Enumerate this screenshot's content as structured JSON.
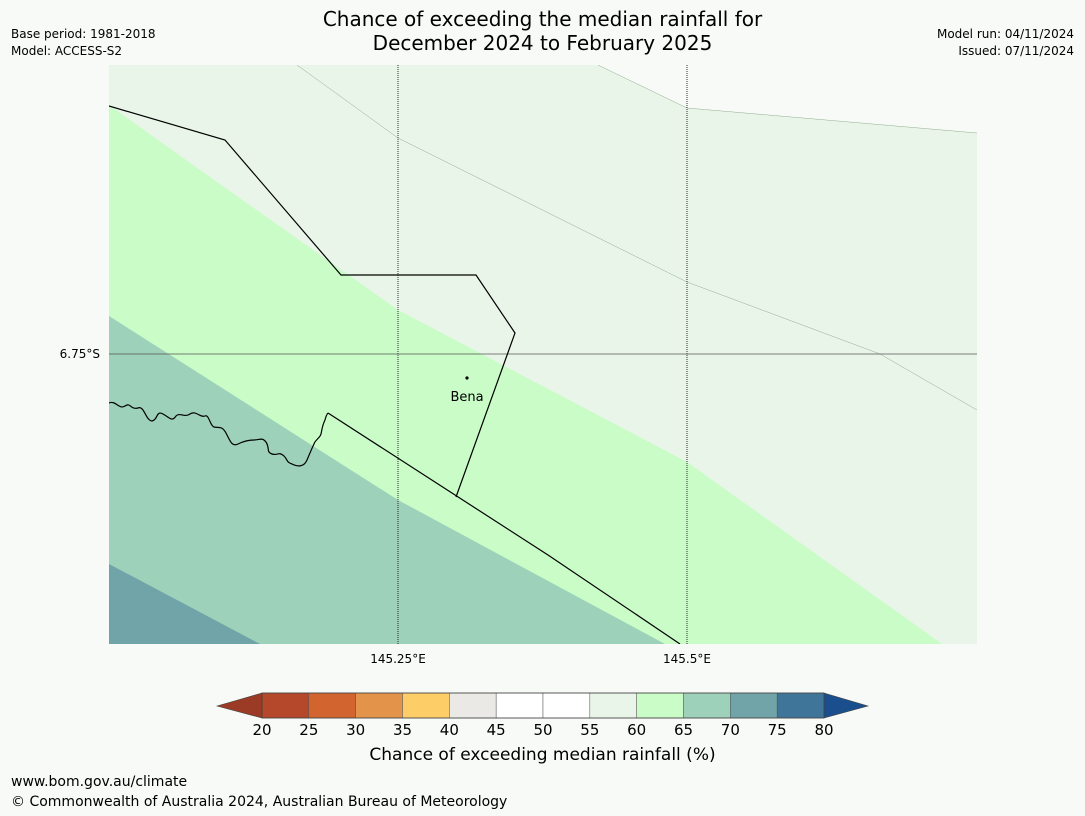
{
  "title_line1": "Chance of exceeding the median rainfall for",
  "title_line2": "December 2024 to February 2025",
  "base_period": "Base period: 1981-2018",
  "model": "Model: ACCESS-S2",
  "model_run": "Model run: 04/11/2024",
  "issued": "Issued: 07/11/2024",
  "map": {
    "lat_label": "6.75°S",
    "lon_labels": [
      "145.25°E",
      "145.5°E"
    ],
    "town": "Bena"
  },
  "colorbar": {
    "ticks": [
      "20",
      "25",
      "30",
      "35",
      "40",
      "45",
      "50",
      "55",
      "60",
      "65",
      "70",
      "75",
      "80"
    ],
    "colors": [
      "#9b3b26",
      "#b5482a",
      "#d2652f",
      "#e4944a",
      "#fdcd67",
      "#eae9e5",
      "#ffffff",
      "#ffffff",
      "#e9f5e8",
      "#c9fcc7",
      "#9dd1ba",
      "#70a4a8",
      "#3f7599",
      "#1a4e8c"
    ],
    "label": "Chance of exceeding median rainfall (%)"
  },
  "footer_url": "www.bom.gov.au/climate",
  "footer_copyright": "© Commonwealth of Australia 2024, Australian Bureau of Meteorology"
}
